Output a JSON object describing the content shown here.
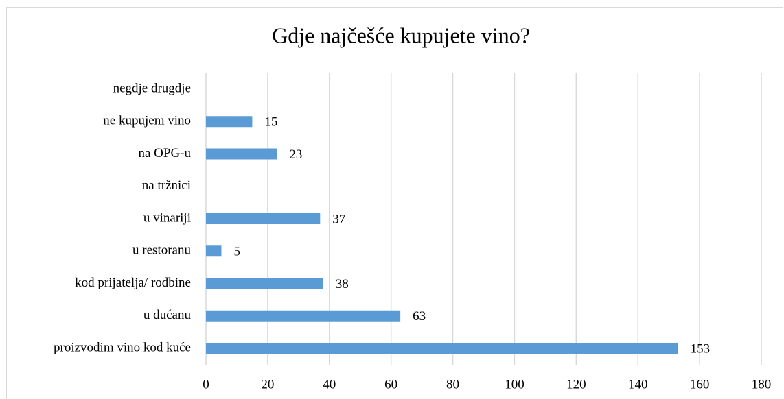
{
  "chart_data": {
    "type": "bar",
    "orientation": "horizontal",
    "title": "Gdje najčešće kupujete vino?",
    "categories": [
      "negdje drugdje",
      "ne kupujem vino",
      "na OPG-u",
      "na tržnici",
      "u vinariji",
      "u restoranu",
      "kod prijatelja/ rodbine",
      "u dućanu",
      "proizvodim vino kod kuće"
    ],
    "values": [
      null,
      15,
      23,
      null,
      37,
      5,
      38,
      63,
      153
    ],
    "color": "#5b9bd5",
    "xlim": [
      0,
      180
    ],
    "xticks": [
      0,
      20,
      40,
      60,
      80,
      100,
      120,
      140,
      160,
      180
    ],
    "grid": true
  }
}
